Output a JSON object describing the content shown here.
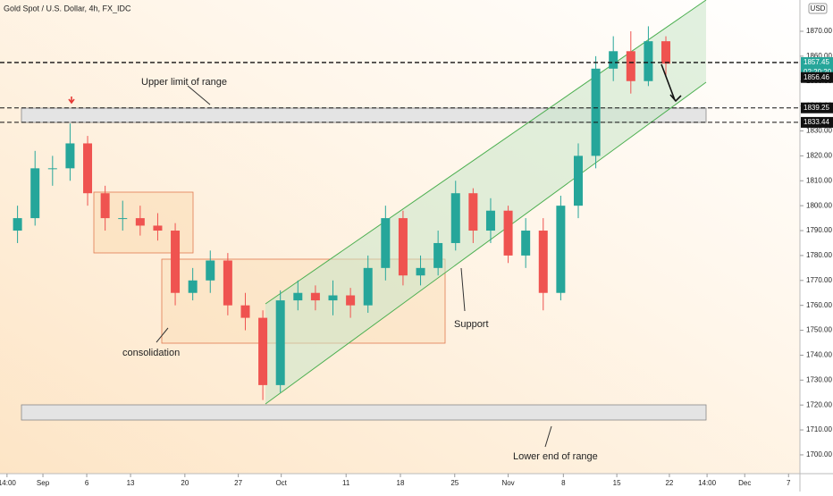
{
  "chart_data": {
    "type": "candlestick",
    "title": "Gold Spot / U.S. Dollar, 4h, FX_IDC",
    "currency": "USD",
    "x": [
      2,
      4,
      6,
      8,
      10,
      12,
      14,
      16,
      18,
      20,
      22,
      24,
      26,
      28,
      30,
      32,
      34,
      36,
      38,
      40,
      42,
      44,
      46,
      48,
      50,
      52,
      54,
      56,
      58,
      60,
      62,
      64,
      66,
      68,
      70,
      72,
      74,
      76
    ],
    "open": [
      1790,
      1795,
      1815,
      1815,
      1825,
      1805,
      1795,
      1795,
      1792,
      1790,
      1765,
      1770,
      1778,
      1760,
      1755,
      1728,
      1762,
      1765,
      1762,
      1764,
      1760,
      1775,
      1795,
      1772,
      1775,
      1785,
      1805,
      1790,
      1798,
      1780,
      1790,
      1765,
      1800,
      1820,
      1855,
      1862,
      1850,
      1866
    ],
    "high": [
      1800,
      1822,
      1820,
      1833,
      1828,
      1808,
      1802,
      1800,
      1797,
      1793,
      1775,
      1782,
      1781,
      1765,
      1758,
      1766,
      1770,
      1768,
      1770,
      1767,
      1780,
      1800,
      1798,
      1780,
      1790,
      1810,
      1807,
      1803,
      1800,
      1795,
      1795,
      1804,
      1825,
      1860,
      1868,
      1870,
      1872,
      1868
    ],
    "low": [
      1785,
      1792,
      1808,
      1810,
      1800,
      1790,
      1790,
      1788,
      1786,
      1760,
      1762,
      1765,
      1756,
      1750,
      1722,
      1725,
      1758,
      1758,
      1756,
      1755,
      1757,
      1770,
      1768,
      1768,
      1772,
      1782,
      1785,
      1785,
      1777,
      1775,
      1758,
      1762,
      1795,
      1815,
      1850,
      1845,
      1848,
      1852
    ],
    "close": [
      1795,
      1815,
      1815,
      1825,
      1805,
      1795,
      1795,
      1792,
      1790,
      1765,
      1770,
      1778,
      1760,
      1755,
      1728,
      1762,
      1765,
      1762,
      1764,
      1760,
      1775,
      1795,
      1772,
      1775,
      1785,
      1805,
      1790,
      1798,
      1780,
      1790,
      1765,
      1800,
      1820,
      1855,
      1862,
      1850,
      1866,
      1857
    ],
    "up_color": "#26a69a",
    "down_color": "#ef5350",
    "xlim": [
      0,
      91.3
    ],
    "ylim": [
      1692.45,
      1882.55
    ],
    "yticks": [
      {
        "value": 1700,
        "label": "1700.00"
      },
      {
        "value": 1710,
        "label": "1710.00"
      },
      {
        "value": 1720,
        "label": "1720.00"
      },
      {
        "value": 1730,
        "label": "1730.00"
      },
      {
        "value": 1740,
        "label": "1740.00"
      },
      {
        "value": 1750,
        "label": "1750.00"
      },
      {
        "value": 1760,
        "label": "1760.00"
      },
      {
        "value": 1770,
        "label": "1770.00"
      },
      {
        "value": 1780,
        "label": "1780.00"
      },
      {
        "value": 1790,
        "label": "1790.00"
      },
      {
        "value": 1800,
        "label": "1800.00"
      },
      {
        "value": 1810,
        "label": "1810.00"
      },
      {
        "value": 1820,
        "label": "1820.00"
      },
      {
        "value": 1830,
        "label": "1830.00"
      },
      {
        "value": 1840,
        "label": "1840.00"
      },
      {
        "value": 1850,
        "label": "1850.00"
      },
      {
        "value": 1860,
        "label": "1860.00"
      },
      {
        "value": 1870,
        "label": "1870.00"
      }
    ],
    "xticks": [
      {
        "value": 0.8,
        "label": "14:00"
      },
      {
        "value": 4.9,
        "label": "Sep"
      },
      {
        "value": 9.9,
        "label": "6"
      },
      {
        "value": 14.9,
        "label": "13"
      },
      {
        "value": 21.1,
        "label": "20"
      },
      {
        "value": 27.2,
        "label": "27"
      },
      {
        "value": 32.1,
        "label": "Oct"
      },
      {
        "value": 39.5,
        "label": "11"
      },
      {
        "value": 45.7,
        "label": "18"
      },
      {
        "value": 51.9,
        "label": "25"
      },
      {
        "value": 58,
        "label": "Nov"
      },
      {
        "value": 64.3,
        "label": "8"
      },
      {
        "value": 70.4,
        "label": "15"
      },
      {
        "value": 76.4,
        "label": "22"
      },
      {
        "value": 80.7,
        "label": "14:00"
      },
      {
        "value": 85,
        "label": "Dec"
      },
      {
        "value": 90,
        "label": "7"
      }
    ],
    "price_tags": [
      1857.45,
      1856.46,
      1839.25,
      1833.44
    ],
    "countdown": "02:20:20",
    "annotations": [
      "Upper limit of range",
      "consolidation",
      "Support",
      "Lower end of range"
    ]
  }
}
